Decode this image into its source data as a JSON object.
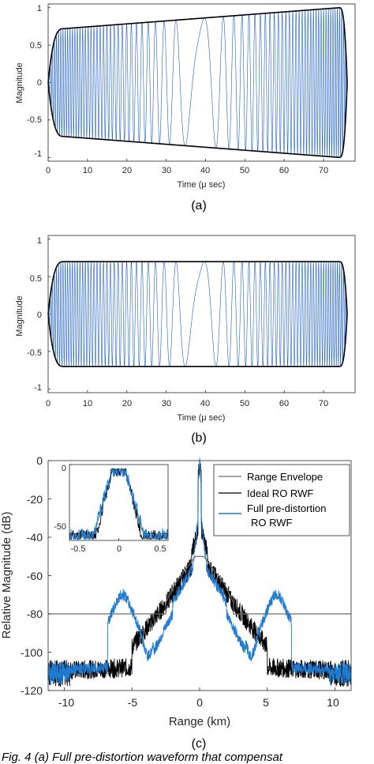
{
  "chart_data": [
    {
      "id": "a",
      "type": "line",
      "xlabel": "Time (μ sec)",
      "ylabel": "Magnitude",
      "xlim": [
        0,
        78
      ],
      "ylim": [
        -1.05,
        1.05
      ],
      "xticks": [
        "0",
        "10",
        "20",
        "30",
        "40",
        "50",
        "60",
        "70"
      ],
      "yticks": [
        "1",
        "0.5",
        "0",
        "-0.5",
        "-1"
      ],
      "caption": "(a)",
      "envelope": {
        "start": 0,
        "rise_end": 4,
        "upper_start": 0.72,
        "upper_end": 1.0,
        "lower_start": -0.72,
        "lower_end": -1.0,
        "fall_start": 74,
        "end": 76
      },
      "waveform_color": "#1f5fbf",
      "envelope_color": "#000000"
    },
    {
      "id": "b",
      "type": "line",
      "xlabel": "Time (μ sec)",
      "ylabel": "Magnitude",
      "xlim": [
        0,
        78
      ],
      "ylim": [
        -1.05,
        1.05
      ],
      "xticks": [
        "0",
        "10",
        "20",
        "30",
        "40",
        "50",
        "60",
        "70"
      ],
      "yticks": [
        "1",
        "0.5",
        "0",
        "-0.5",
        "-1"
      ],
      "caption": "(b)",
      "envelope": {
        "start": 0,
        "rise_end": 4,
        "upper_start": 0.7,
        "upper_end": 0.7,
        "lower_start": -0.7,
        "lower_end": -0.7,
        "fall_start": 74,
        "end": 76
      },
      "waveform_color": "#1f5fbf",
      "envelope_color": "#000000"
    },
    {
      "id": "c",
      "type": "line",
      "xlabel": "Range (km)",
      "ylabel": "Relative Magnitude (dB)",
      "xlim": [
        -11.2,
        11.2
      ],
      "ylim": [
        -120,
        0
      ],
      "xticks": [
        "-10",
        "-5",
        "0",
        "5",
        "10"
      ],
      "yticks": [
        "0",
        "-20",
        "-40",
        "-60",
        "-80",
        "-100",
        "-120"
      ],
      "caption": "(c)",
      "legend_position": "top-right",
      "series": [
        {
          "name": "Range Envelope",
          "color": "#6e6e6e",
          "x": [
            -11.2,
            -2.5,
            -2.5,
            -1.8,
            -0.3,
            0,
            0.3,
            1.8,
            2.5,
            2.5,
            11.2
          ],
          "y": [
            -80,
            -80,
            -74,
            -64,
            -50,
            -50,
            -50,
            -64,
            -74,
            -80,
            -80
          ]
        },
        {
          "name": "Ideal RO RWF",
          "color": "#000000"
        },
        {
          "name": "Full pre-distortion RO RWF",
          "color": "#1f7bd0"
        }
      ],
      "inset": {
        "xlim": [
          -0.6,
          0.6
        ],
        "ylim": [
          -55,
          0
        ],
        "xticks": [
          "-0.5",
          "0",
          "0.5"
        ],
        "yticks": [
          "0",
          "-50"
        ]
      }
    }
  ],
  "legend": {
    "entry1": "Range Envelope",
    "entry2": "Ideal RO RWF",
    "entry3a": "Full pre-distortion",
    "entry3b": "RO RWF"
  },
  "footer_text": "Fig. 4 (a) Full pre-distortion waveform that compensat"
}
